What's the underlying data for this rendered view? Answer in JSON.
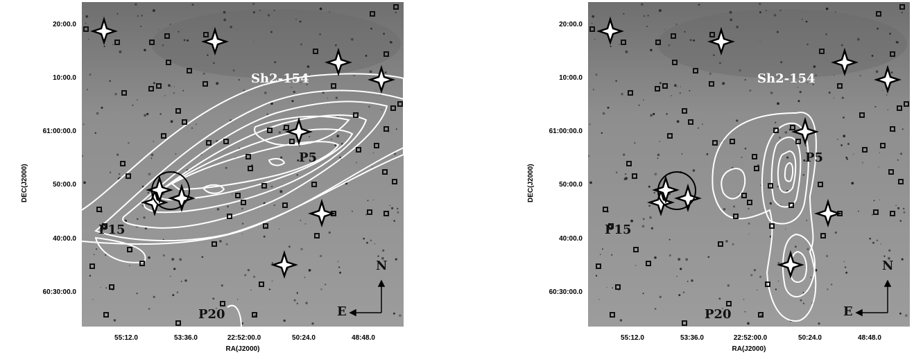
{
  "panels": [
    {
      "id": "left",
      "y_ticks": [
        "20:00.0",
        "10:00.0",
        "61:00:00.0",
        "50:00.0",
        "40:00.0",
        "60:30:00.0"
      ],
      "x_ticks": [
        "55:12.0",
        "53:36.0",
        "22:52:00.0",
        "50:24.0",
        "48:48.0"
      ],
      "xlabel": "RA(J2000)",
      "ylabel": "DEC(J2000)",
      "labels": {
        "sh": "Sh2-154",
        "p5": "P5",
        "p15": "P15",
        "p20": "P20",
        "n": "N",
        "e": "E"
      }
    },
    {
      "id": "right",
      "y_ticks": [
        "20:00.0",
        "10:00.0",
        "61:00:00.0",
        "50:00.0",
        "40:00.0",
        "60:30:00.0"
      ],
      "x_ticks": [
        "55:12.0",
        "53:36.0",
        "22:52:00.0",
        "50:24.0",
        "48:48.0"
      ],
      "xlabel": "RA(J2000)",
      "ylabel": "DEC(J2000)",
      "labels": {
        "sh": "Sh2-154",
        "p5": "P5",
        "p15": "P15",
        "p20": "P20",
        "n": "N",
        "e": "E"
      }
    }
  ],
  "colors": {
    "background": "#9a9a9a",
    "contour": "#ffffff",
    "marker": "#000000"
  }
}
